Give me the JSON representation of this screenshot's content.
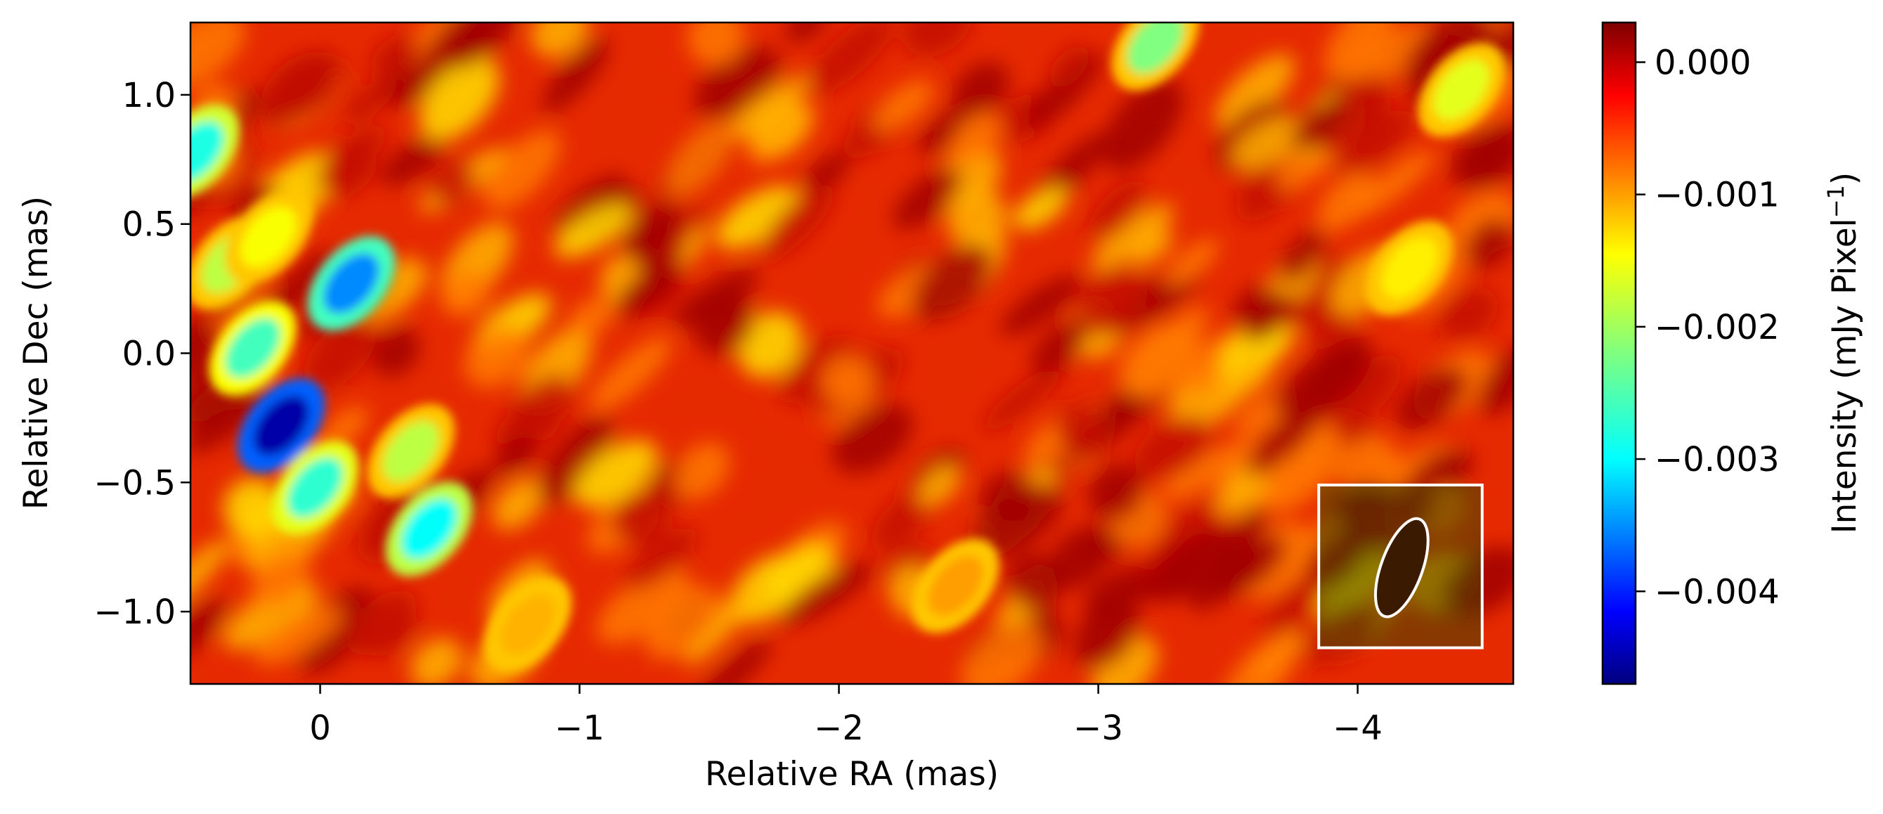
{
  "chart_data": {
    "type": "heatmap",
    "title": "",
    "xlabel": "Relative RA (mas)",
    "ylabel": "Relative Dec (mas)",
    "xlim": [
      0.5,
      -4.6
    ],
    "ylim": [
      -1.28,
      1.28
    ],
    "x_ticks": [
      {
        "value": 0,
        "label": "0"
      },
      {
        "value": -1,
        "label": "−1"
      },
      {
        "value": -2,
        "label": "−2"
      },
      {
        "value": -3,
        "label": "−3"
      },
      {
        "value": -4,
        "label": "−4"
      }
    ],
    "y_ticks": [
      {
        "value": 1.0,
        "label": "1.0"
      },
      {
        "value": 0.5,
        "label": "0.5"
      },
      {
        "value": 0.0,
        "label": "0.0"
      },
      {
        "value": -0.5,
        "label": "−0.5"
      },
      {
        "value": -1.0,
        "label": "−1.0"
      }
    ],
    "colormap": "jet",
    "colorbar": {
      "label": "Intensity (mJy Pixel",
      "label_superscript": "−1",
      "label_close": ")",
      "range": [
        -0.0047,
        0.0003
      ],
      "ticks": [
        {
          "value": 0.0,
          "label": "0.000"
        },
        {
          "value": -0.001,
          "label": "−0.001"
        },
        {
          "value": -0.002,
          "label": "−0.002"
        },
        {
          "value": -0.003,
          "label": "−0.003"
        },
        {
          "value": -0.004,
          "label": "−0.004"
        }
      ]
    },
    "features": [
      {
        "ra": 0.48,
        "dec": 0.78,
        "value": -0.0027
      },
      {
        "ra": 0.35,
        "dec": 0.35,
        "value": -0.0019
      },
      {
        "ra": 0.2,
        "dec": 0.45,
        "value": -0.0016
      },
      {
        "ra": -0.12,
        "dec": 0.27,
        "value": -0.0034
      },
      {
        "ra": 0.26,
        "dec": 0.02,
        "value": -0.0025
      },
      {
        "ra": 0.15,
        "dec": -0.28,
        "value": -0.0045
      },
      {
        "ra": 0.02,
        "dec": -0.52,
        "value": -0.0026
      },
      {
        "ra": -0.42,
        "dec": -0.68,
        "value": -0.0028
      },
      {
        "ra": -0.35,
        "dec": -0.38,
        "value": -0.0019
      },
      {
        "ra": -3.22,
        "dec": 1.2,
        "value": -0.0022
      },
      {
        "ra": -4.4,
        "dec": 1.02,
        "value": -0.0017
      },
      {
        "ra": -4.2,
        "dec": 0.33,
        "value": -0.0015
      },
      {
        "ra": -0.8,
        "dec": -1.05,
        "value": -0.0012
      },
      {
        "ra": -2.45,
        "dec": -0.9,
        "value": -0.0011
      }
    ],
    "beam": {
      "center_ra": -4.17,
      "center_dec": -0.83,
      "major_mas": 0.4,
      "minor_mas": 0.16,
      "position_angle_deg": -20,
      "box": {
        "ra": [
          -3.85,
          -4.48
        ],
        "dec": [
          -0.51,
          -1.14
        ]
      }
    },
    "grid": false,
    "legend": "none"
  }
}
